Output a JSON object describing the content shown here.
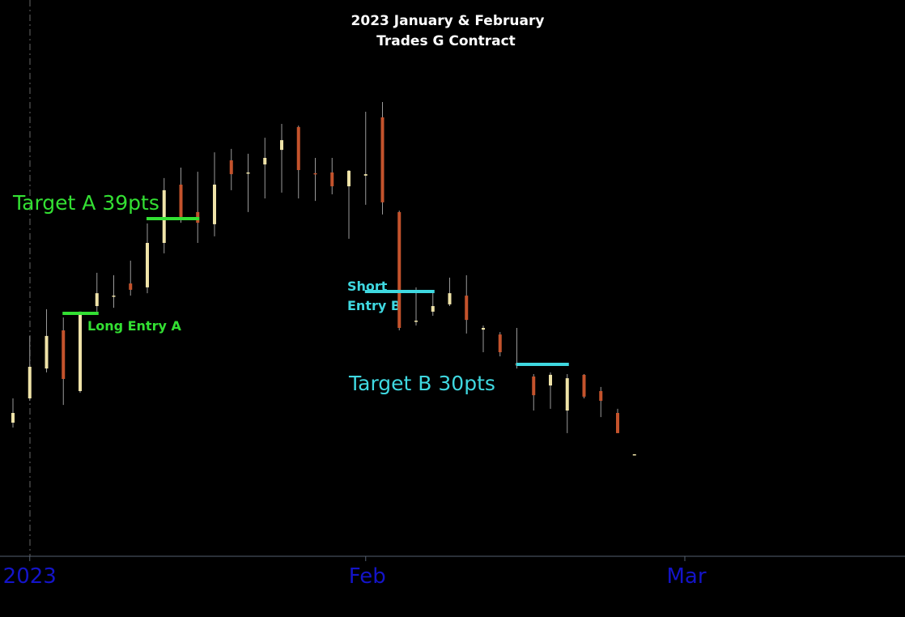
{
  "chart_data": {
    "type": "candlestick",
    "title": [
      "2023 January & February",
      "Trades G Contract"
    ],
    "categories": [
      null,
      "2023",
      null,
      null,
      null,
      null,
      null,
      null,
      null,
      null,
      null,
      null,
      null,
      null,
      null,
      null,
      null,
      null,
      null,
      null,
      null,
      "Feb",
      null,
      null,
      null,
      null,
      null,
      null,
      null,
      null,
      null,
      null,
      null,
      null,
      null,
      null,
      null,
      null,
      null,
      null,
      "Mar"
    ],
    "open": [
      55,
      65,
      77.3,
      93,
      68,
      103,
      107,
      112.3,
      110.7,
      129,
      153,
      141.7,
      136.7,
      163,
      157.7,
      161.3,
      167.3,
      176.7,
      157.7,
      158,
      152.3,
      156.7,
      180.7,
      141.7,
      96.7,
      100.7,
      103.7,
      107.3,
      93.3,
      91.3,
      79.3,
      74,
      70.3,
      60,
      74.7,
      68,
      59,
      42,
      null,
      null,
      null
    ],
    "high": [
      65,
      90.7,
      101.7,
      98.3,
      100.7,
      116.7,
      115.7,
      121.7,
      137,
      155.7,
      160,
      158.3,
      166.3,
      167.7,
      165.7,
      172.3,
      178,
      177.3,
      164,
      164,
      159,
      183,
      187,
      142.3,
      110.7,
      109,
      114.7,
      115.7,
      95,
      92.3,
      94,
      75,
      75.7,
      75,
      75,
      69.7,
      60.7,
      42,
      null,
      null,
      null
    ],
    "low": [
      53,
      64,
      75.7,
      62.3,
      67.3,
      100.7,
      102.3,
      107.3,
      108.3,
      124.7,
      137.3,
      129,
      131.7,
      150.7,
      141.7,
      147.3,
      149.7,
      147.3,
      146.3,
      149,
      130.7,
      144.7,
      140.7,
      93,
      95,
      99,
      103,
      91.7,
      84,
      82.3,
      77.3,
      60,
      60.7,
      50.7,
      65,
      57.3,
      50.7,
      42,
      null,
      null,
      null
    ],
    "close": [
      59,
      78,
      90.7,
      73,
      100.7,
      108.3,
      107.3,
      109.7,
      129,
      150.7,
      139.7,
      137.3,
      153,
      157.3,
      158,
      164,
      171.3,
      159,
      157.3,
      152.3,
      158.7,
      157.3,
      145.7,
      94,
      97,
      103,
      108.3,
      97.3,
      94,
      84,
      79,
      66.3,
      74.7,
      73.3,
      65.7,
      64,
      50.7,
      42,
      null,
      null,
      null
    ],
    "up_color": "#efe3a8",
    "down_color": "#c4532c",
    "ylim": [
      0,
      229
    ],
    "levels": [
      {
        "value": 100,
        "start": 3,
        "end": 5,
        "color": "#33e033"
      },
      {
        "value": 139,
        "start": 8,
        "end": 11,
        "color": "#33e033"
      },
      {
        "value": 109,
        "start": 21,
        "end": 25,
        "color": "#3fd8e0"
      },
      {
        "value": 79,
        "start": 30,
        "end": 33,
        "color": "#3fd8e0"
      }
    ],
    "annotations": [
      "Target A 39pts",
      "Long Entry A",
      "Short",
      "Entry B",
      "Target B 30pts"
    ]
  }
}
